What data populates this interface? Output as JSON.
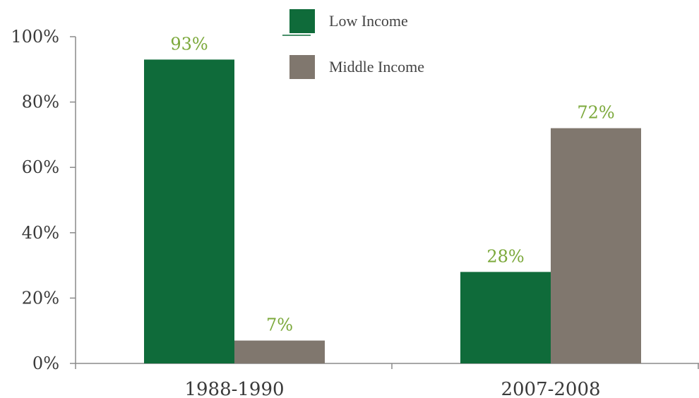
{
  "chart_data": {
    "type": "bar",
    "categories": [
      "1988-1990",
      "2007-2008"
    ],
    "series": [
      {
        "name": "Low Income",
        "values": [
          93,
          28
        ],
        "color": "#0f6b3a"
      },
      {
        "name": "Middle Income",
        "values": [
          7,
          72
        ],
        "color": "#80776e"
      }
    ],
    "data_labels": [
      [
        "93%",
        "28%"
      ],
      [
        "7%",
        "72%"
      ]
    ],
    "data_label_color": "#7ba83a",
    "y_ticks": [
      0,
      20,
      40,
      60,
      80,
      100
    ],
    "y_tick_labels": [
      "0%",
      "20%",
      "40%",
      "60%",
      "80%",
      "100%"
    ],
    "ylim": [
      0,
      100
    ],
    "title": "",
    "xlabel": "",
    "ylabel": "",
    "grid": false,
    "legend_position": "top-center"
  }
}
